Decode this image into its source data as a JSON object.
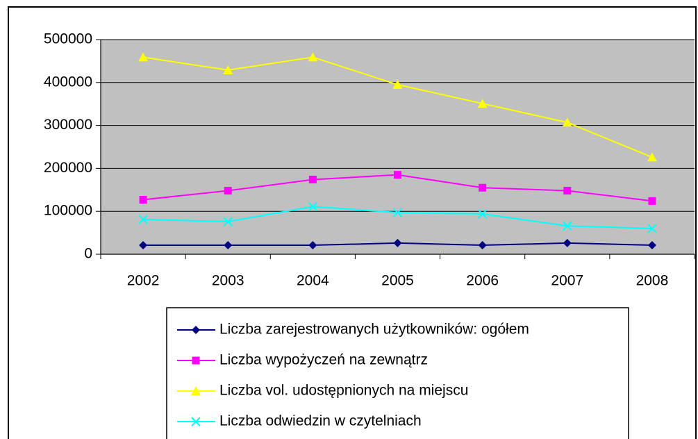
{
  "chart_data": {
    "type": "line",
    "categories": [
      "2002",
      "2003",
      "2004",
      "2005",
      "2006",
      "2007",
      "2008"
    ],
    "series": [
      {
        "name": "Liczba zarejestrowanych użytkowników: ogółem",
        "color": "#000080",
        "marker": "diamond",
        "values": [
          21000,
          21000,
          21000,
          26000,
          21000,
          26000,
          21000
        ]
      },
      {
        "name": "Liczba wypożyczeń na zewnątrz",
        "color": "#ff00ff",
        "marker": "square",
        "values": [
          127000,
          148000,
          174000,
          185000,
          155000,
          148000,
          124000
        ]
      },
      {
        "name": "Liczba vol. udostępnionych na miejscu",
        "color": "#ffff00",
        "marker": "triangle",
        "values": [
          459000,
          429000,
          459000,
          395000,
          351000,
          307000,
          226000
        ]
      },
      {
        "name": "Liczba odwiedzin w czytelniach",
        "color": "#00ffff",
        "marker": "x",
        "values": [
          81000,
          76000,
          111000,
          97000,
          94000,
          66000,
          60000
        ]
      }
    ],
    "ylim": [
      0,
      500000
    ],
    "yticks": [
      0,
      100000,
      200000,
      300000,
      400000,
      500000
    ],
    "grid": true,
    "plot_background": "#c0c0c0",
    "legend": "bottom"
  }
}
